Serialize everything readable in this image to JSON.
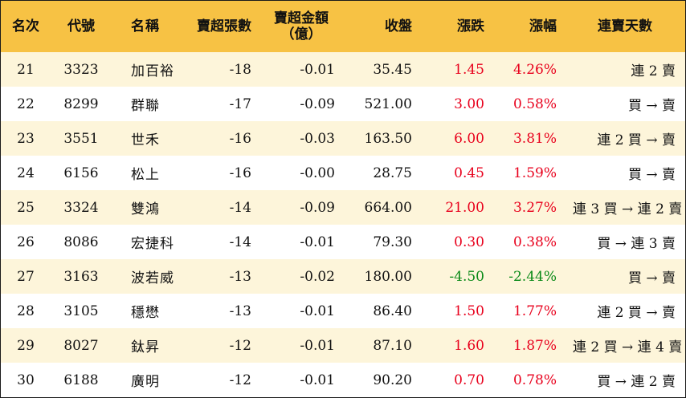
{
  "colors": {
    "header_bg": "#f7c244",
    "row_alt_bg": "#fdf5da",
    "up": "#e8001c",
    "down": "#0a8a18"
  },
  "header": {
    "rank": "名次",
    "code": "代號",
    "name": "名稱",
    "sell_lots": "賣超張數",
    "sell_amount_line1": "賣超金額",
    "sell_amount_line2": "（億）",
    "close": "收盤",
    "change": "漲跌",
    "change_pct": "漲幅",
    "streak": "連賣天數"
  },
  "rows": [
    {
      "rank": "21",
      "code": "3323",
      "name": "加百裕",
      "lots": "-18",
      "amount": "-0.01",
      "close": "35.45",
      "change": "1.45",
      "pct": "4.26%",
      "dir": "up",
      "streak": "連 2 賣"
    },
    {
      "rank": "22",
      "code": "8299",
      "name": "群聯",
      "lots": "-17",
      "amount": "-0.09",
      "close": "521.00",
      "change": "3.00",
      "pct": "0.58%",
      "dir": "up",
      "streak": "買 → 賣"
    },
    {
      "rank": "23",
      "code": "3551",
      "name": "世禾",
      "lots": "-16",
      "amount": "-0.03",
      "close": "163.50",
      "change": "6.00",
      "pct": "3.81%",
      "dir": "up",
      "streak": "連 2 買 → 賣"
    },
    {
      "rank": "24",
      "code": "6156",
      "name": "松上",
      "lots": "-16",
      "amount": "-0.00",
      "close": "28.75",
      "change": "0.45",
      "pct": "1.59%",
      "dir": "up",
      "streak": "買 → 賣"
    },
    {
      "rank": "25",
      "code": "3324",
      "name": "雙鴻",
      "lots": "-14",
      "amount": "-0.09",
      "close": "664.00",
      "change": "21.00",
      "pct": "3.27%",
      "dir": "up",
      "streak": "連 3 買 → 連 2 賣"
    },
    {
      "rank": "26",
      "code": "8086",
      "name": "宏捷科",
      "lots": "-14",
      "amount": "-0.01",
      "close": "79.30",
      "change": "0.30",
      "pct": "0.38%",
      "dir": "up",
      "streak": "買 → 連 3 賣"
    },
    {
      "rank": "27",
      "code": "3163",
      "name": "波若威",
      "lots": "-13",
      "amount": "-0.02",
      "close": "180.00",
      "change": "-4.50",
      "pct": "-2.44%",
      "dir": "down",
      "streak": "買 → 賣"
    },
    {
      "rank": "28",
      "code": "3105",
      "name": "穩懋",
      "lots": "-13",
      "amount": "-0.01",
      "close": "86.40",
      "change": "1.50",
      "pct": "1.77%",
      "dir": "up",
      "streak": "連 2 買 → 賣"
    },
    {
      "rank": "29",
      "code": "8027",
      "name": "鈦昇",
      "lots": "-12",
      "amount": "-0.01",
      "close": "87.10",
      "change": "1.60",
      "pct": "1.87%",
      "dir": "up",
      "streak": "連 2 買 → 連 4 賣"
    },
    {
      "rank": "30",
      "code": "6188",
      "name": "廣明",
      "lots": "-12",
      "amount": "-0.01",
      "close": "90.20",
      "change": "0.70",
      "pct": "0.78%",
      "dir": "up",
      "streak": "買 → 連 2 賣"
    }
  ]
}
